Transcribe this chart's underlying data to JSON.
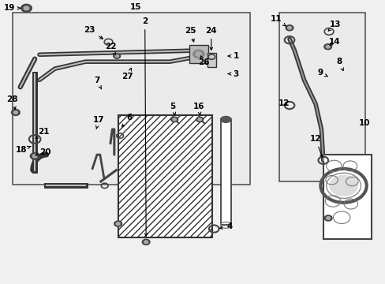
{
  "bg_color": "#f0f0f0",
  "white": "#ffffff",
  "black": "#000000",
  "line_dark": "#333333",
  "line_med": "#555555",
  "line_light": "#888888",
  "fill_light": "#ebebeb",
  "fill_comp": "#cccccc"
}
